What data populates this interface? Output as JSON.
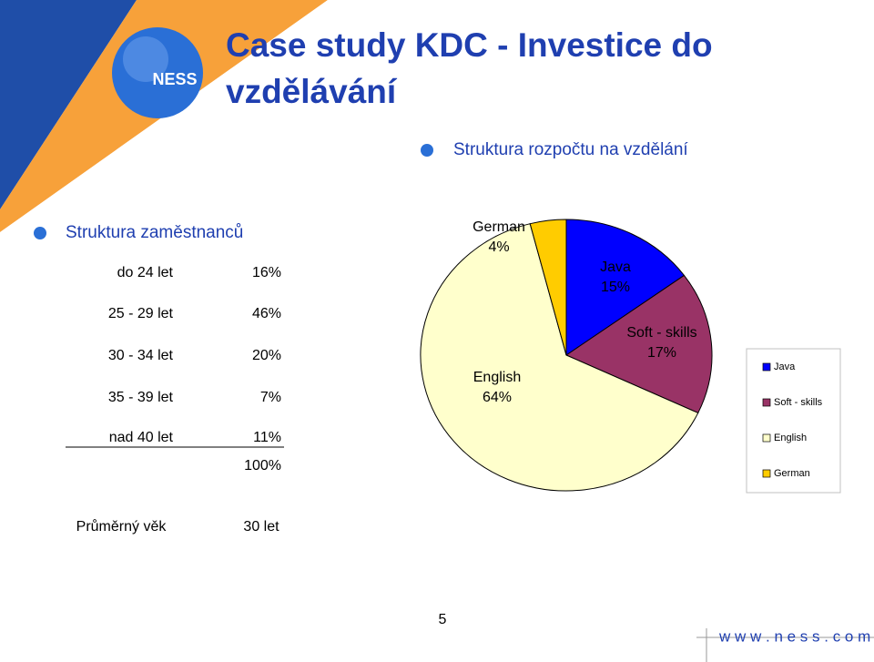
{
  "logo": {
    "text": "NESS"
  },
  "title": "Case study KDC - Investice do vzdělávání",
  "budget_heading": "Struktura rozpočtu na vzdělání",
  "staff": {
    "heading": "Struktura zaměstnanců",
    "rows": [
      [
        "do 24 let",
        "16%"
      ],
      [
        "25 - 29 let",
        "46%"
      ],
      [
        "30 - 34 let",
        "20%"
      ],
      [
        "35 - 39 let",
        "7%"
      ],
      [
        "nad 40 let",
        "11%"
      ]
    ],
    "total": "100%",
    "average": [
      "Průměrný věk",
      "30 let"
    ]
  },
  "chart_data": {
    "type": "pie",
    "categories": [
      "Java",
      "Soft - skills",
      "English",
      "German"
    ],
    "values": [
      15,
      17,
      64,
      4
    ],
    "value_labels": [
      "15%",
      "17%",
      "64%",
      "4%"
    ],
    "colors": [
      "#0000ff",
      "#993366",
      "#ffffcc",
      "#ffcc00"
    ],
    "legend": "right"
  },
  "page_number": "5",
  "footer": "w w w . n e s s . c o m"
}
